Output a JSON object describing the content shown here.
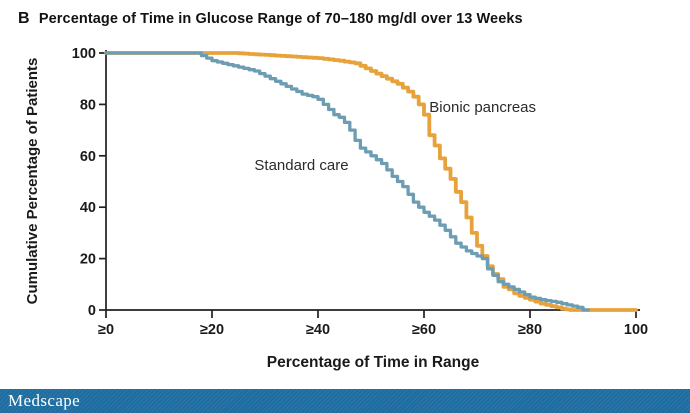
{
  "header": {
    "panel_label": "B",
    "title": "Percentage of Time in Glucose Range of 70–180 mg/dl over 13 Weeks"
  },
  "chart_data": {
    "type": "line",
    "style": "step-survival",
    "title": "Percentage of Time in Glucose Range of 70–180 mg/dl over 13 Weeks",
    "xlabel": "Percentage of Time in Range",
    "ylabel": "Cumulative Percentage of Patients",
    "xlim": [
      0,
      100
    ],
    "ylim": [
      0,
      100
    ],
    "grid": false,
    "legend_position": "inline-annotations",
    "axis_color": "#231f20",
    "tick_label_color": "#1a1a1a",
    "x_ticks": [
      {
        "value": 0,
        "label": "≥0"
      },
      {
        "value": 20,
        "label": "≥20"
      },
      {
        "value": 40,
        "label": "≥40"
      },
      {
        "value": 60,
        "label": "≥60"
      },
      {
        "value": 80,
        "label": "≥80"
      },
      {
        "value": 100,
        "label": "100"
      }
    ],
    "y_ticks": [
      {
        "value": 0,
        "label": "0"
      },
      {
        "value": 20,
        "label": "20"
      },
      {
        "value": 40,
        "label": "40"
      },
      {
        "value": 60,
        "label": "60"
      },
      {
        "value": 80,
        "label": "80"
      },
      {
        "value": 100,
        "label": "100"
      }
    ],
    "series": [
      {
        "name": "Bionic pancreas",
        "color": "#e8a23c",
        "stroke_width": 3.8,
        "label_anchor": {
          "x": 61,
          "y": 77
        },
        "points": [
          [
            0,
            100
          ],
          [
            24,
            100
          ],
          [
            28,
            99.5
          ],
          [
            32,
            99
          ],
          [
            36,
            98.5
          ],
          [
            40,
            98
          ],
          [
            44,
            97
          ],
          [
            47,
            96
          ],
          [
            49,
            94
          ],
          [
            51,
            92
          ],
          [
            53,
            90
          ],
          [
            55,
            88
          ],
          [
            57,
            85
          ],
          [
            58,
            83
          ],
          [
            59,
            80
          ],
          [
            60,
            76
          ],
          [
            61,
            68
          ],
          [
            62,
            64
          ],
          [
            63,
            59
          ],
          [
            64,
            55
          ],
          [
            65,
            51
          ],
          [
            66,
            46
          ],
          [
            67,
            42
          ],
          [
            68,
            36
          ],
          [
            69,
            30
          ],
          [
            70,
            25
          ],
          [
            71,
            21
          ],
          [
            72,
            17
          ],
          [
            73,
            14
          ],
          [
            74,
            12
          ],
          [
            75,
            9
          ],
          [
            76,
            8
          ],
          [
            77,
            6.5
          ],
          [
            78,
            5.5
          ],
          [
            80,
            4
          ],
          [
            82,
            2.5
          ],
          [
            84,
            1.5
          ],
          [
            86,
            0.5
          ],
          [
            87.5,
            0
          ],
          [
            100,
            0
          ]
        ]
      },
      {
        "name": "Standard care",
        "color": "#6c9db2",
        "stroke_width": 3.3,
        "label_anchor": {
          "x": 28,
          "y": 54.5
        },
        "points": [
          [
            0,
            100
          ],
          [
            17,
            100
          ],
          [
            19,
            98
          ],
          [
            20,
            97
          ],
          [
            22,
            96
          ],
          [
            24,
            95
          ],
          [
            26,
            94
          ],
          [
            28,
            93
          ],
          [
            30,
            91
          ],
          [
            32,
            89
          ],
          [
            34,
            87
          ],
          [
            35,
            86
          ],
          [
            37,
            84
          ],
          [
            39,
            83
          ],
          [
            40,
            82
          ],
          [
            41,
            80
          ],
          [
            42,
            78
          ],
          [
            43,
            76
          ],
          [
            44,
            75
          ],
          [
            45,
            73
          ],
          [
            46,
            70
          ],
          [
            47,
            66
          ],
          [
            48,
            63
          ],
          [
            50,
            60
          ],
          [
            52,
            57
          ],
          [
            54,
            52
          ],
          [
            56,
            48
          ],
          [
            58,
            42
          ],
          [
            60,
            38
          ],
          [
            62,
            35
          ],
          [
            64,
            31
          ],
          [
            66,
            26
          ],
          [
            68,
            23
          ],
          [
            70,
            21
          ],
          [
            71,
            20
          ],
          [
            72,
            16
          ],
          [
            74,
            11
          ],
          [
            76,
            9
          ],
          [
            78,
            7
          ],
          [
            80,
            5
          ],
          [
            82,
            4
          ],
          [
            85,
            3
          ],
          [
            87,
            2
          ],
          [
            89,
            1
          ],
          [
            90,
            0
          ],
          [
            91,
            0
          ]
        ]
      }
    ],
    "annotation_font_px": 15,
    "annotation_color": "#2b2b2b"
  },
  "footer": {
    "brand": "Medscape",
    "bar_color": "#1d6da0",
    "text_color": "#ffffff"
  }
}
